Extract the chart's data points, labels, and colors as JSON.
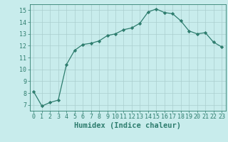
{
  "x": [
    0,
    1,
    2,
    3,
    4,
    5,
    6,
    7,
    8,
    9,
    10,
    11,
    12,
    13,
    14,
    15,
    16,
    17,
    18,
    19,
    20,
    21,
    22,
    23
  ],
  "y": [
    8.1,
    6.9,
    7.2,
    7.4,
    10.4,
    11.6,
    12.1,
    12.2,
    12.4,
    12.85,
    13.0,
    13.35,
    13.5,
    13.9,
    14.85,
    15.1,
    14.8,
    14.7,
    14.1,
    13.25,
    13.0,
    13.1,
    12.3,
    11.9
  ],
  "line_color": "#2e7d6e",
  "marker": "D",
  "marker_size": 2.2,
  "bg_color": "#c8ecec",
  "grid_color": "#aacece",
  "xlabel": "Humidex (Indice chaleur)",
  "xlim": [
    -0.5,
    23.5
  ],
  "ylim": [
    6.5,
    15.5
  ],
  "yticks": [
    7,
    8,
    9,
    10,
    11,
    12,
    13,
    14,
    15
  ],
  "xticks": [
    0,
    1,
    2,
    3,
    4,
    5,
    6,
    7,
    8,
    9,
    10,
    11,
    12,
    13,
    14,
    15,
    16,
    17,
    18,
    19,
    20,
    21,
    22,
    23
  ],
  "tick_label_fontsize": 6.0,
  "xlabel_fontsize": 7.5
}
